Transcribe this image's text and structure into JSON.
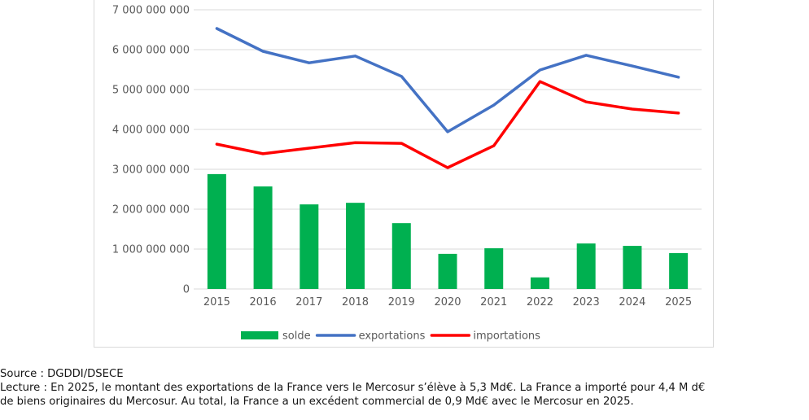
{
  "chart_data": {
    "type": "bar",
    "title": "",
    "xlabel": "",
    "ylabel": "",
    "ylim": [
      0,
      7000000000
    ],
    "yticks": [
      0,
      1000000000,
      2000000000,
      3000000000,
      4000000000,
      5000000000,
      6000000000,
      7000000000
    ],
    "ytick_labels": [
      "0",
      "1 000 000 000",
      "2 000 000 000",
      "3 000 000 000",
      "4 000 000 000",
      "5 000 000 000",
      "6 000 000 000",
      "7 000 000 000"
    ],
    "grid": true,
    "legend_position": "bottom",
    "categories": [
      "2015",
      "2016",
      "2017",
      "2018",
      "2019",
      "2020",
      "2021",
      "2022",
      "2023",
      "2024",
      "2025"
    ],
    "series": [
      {
        "name": "solde",
        "type": "bar",
        "color": "#00b050",
        "values": [
          2880000000,
          2570000000,
          2120000000,
          2160000000,
          1650000000,
          880000000,
          1020000000,
          290000000,
          1140000000,
          1080000000,
          900000000
        ]
      },
      {
        "name": "exportations",
        "type": "line",
        "color": "#4472c4",
        "values": [
          6530000000,
          5960000000,
          5670000000,
          5840000000,
          5330000000,
          3940000000,
          4610000000,
          5490000000,
          5860000000,
          5590000000,
          5310000000
        ]
      },
      {
        "name": "importations",
        "type": "line",
        "color": "#ff0000",
        "values": [
          3630000000,
          3390000000,
          3530000000,
          3670000000,
          3650000000,
          3040000000,
          3590000000,
          5200000000,
          4690000000,
          4510000000,
          4410000000
        ]
      }
    ]
  },
  "caption": {
    "source": "Source : DGDDI/DSECE",
    "lecture_line1": "Lecture : En 2025, le montant des exportations de la France vers le Mercosur s’élève à 5,3 Md€. La France a importé pour 4,4 M d€",
    "lecture_line2": "de biens originaires du Mercosur. Au total, la France a un excédent commercial de 0,9 Md€ avec le Mercosur en 2025."
  },
  "colors": {
    "grid": "#d9d9d9",
    "axis_text": "#595959",
    "frame": "#d9d9d9"
  }
}
